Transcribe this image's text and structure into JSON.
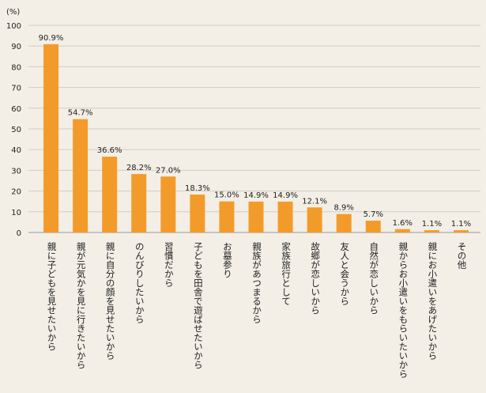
{
  "chart_data": {
    "type": "bar",
    "unit_label": "(%)",
    "ylim": [
      0,
      100
    ],
    "yticks": [
      0,
      10,
      20,
      30,
      40,
      50,
      60,
      70,
      80,
      90,
      100
    ],
    "grid": true,
    "bar_color": "#f39b2a",
    "categories": [
      "親に子どもを見せたいから",
      "親が元気かを見に行きたいから",
      "親に自分の顔を見せたいから",
      "のんびりしたいから",
      "習慣だから",
      "子どもを田舎で遊ばせたいから",
      "お墓参り",
      "親族があつまるから",
      "家族旅行として",
      "故郷が恋しいから",
      "友人と会うから",
      "自然が恋しいから",
      "親からお小遣いをもらいたいから",
      "親にお小遣いをあげたいから",
      "その他"
    ],
    "values": [
      90.9,
      54.7,
      36.6,
      28.2,
      27.0,
      18.3,
      15.0,
      14.9,
      14.9,
      12.1,
      8.9,
      5.7,
      1.6,
      1.1,
      1.1
    ],
    "value_labels": [
      "90.9%",
      "54.7%",
      "36.6%",
      "28.2%",
      "27.0%",
      "18.3%",
      "15.0%",
      "14.9%",
      "14.9%",
      "12.1%",
      "8.9%",
      "5.7%",
      "1.6%",
      "1.1%",
      "1.1%"
    ]
  }
}
